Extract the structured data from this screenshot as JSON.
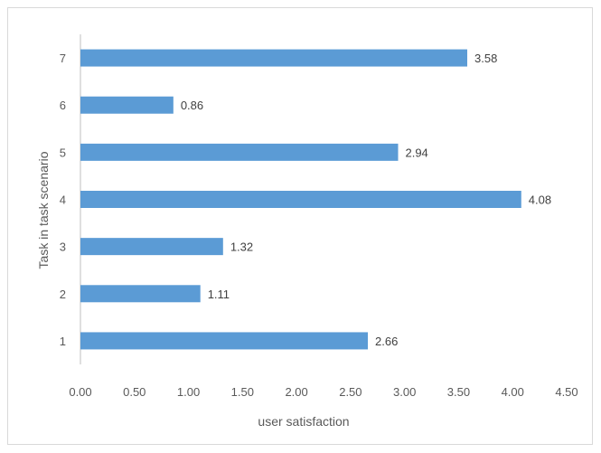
{
  "chart_data": {
    "type": "bar",
    "orientation": "horizontal",
    "title": "",
    "xlabel": "user satisfaction",
    "ylabel": "Task in task scenario",
    "categories": [
      "1",
      "2",
      "3",
      "4",
      "5",
      "6",
      "7"
    ],
    "values": [
      2.66,
      1.11,
      1.32,
      4.08,
      2.94,
      0.86,
      3.58
    ],
    "value_labels": [
      "2.66",
      "1.11",
      "1.32",
      "4.08",
      "2.94",
      "0.86",
      "3.58"
    ],
    "xlim": [
      0,
      4.5
    ],
    "x_ticks": [
      "0.00",
      "0.50",
      "1.00",
      "1.50",
      "2.00",
      "2.50",
      "3.00",
      "3.50",
      "4.00",
      "4.50"
    ],
    "grid": false,
    "legend": "none",
    "bar_color": "#5b9bd5"
  }
}
